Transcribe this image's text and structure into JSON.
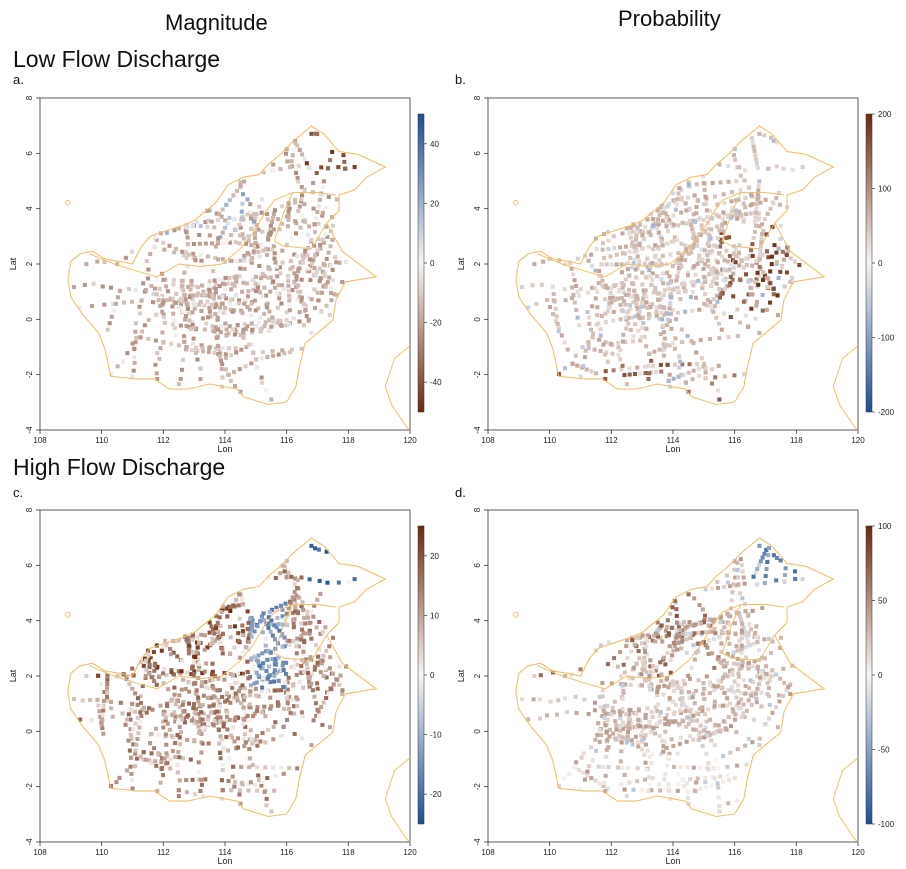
{
  "headers": {
    "left": "Magnitude",
    "right": "Probability"
  },
  "rows": [
    {
      "title": "Low Flow Discharge"
    },
    {
      "title": "High Flow Discharge"
    }
  ],
  "panels": [
    {
      "letter": "a.",
      "xlabel": "Lon",
      "ylabel": "Lat",
      "xticks": [
        "108",
        "110",
        "112",
        "114",
        "116",
        "118",
        "120"
      ],
      "yticks": [
        "8",
        "6",
        "4",
        "2",
        "0",
        "-2",
        "-4"
      ],
      "scale": {
        "min": -50,
        "max": 50,
        "ticks": [
          "40",
          "20",
          "0",
          "-20",
          "-40"
        ]
      },
      "colors": {
        "neg": "#6b2a10",
        "mid": "#f7f4f2",
        "pos": "#1f4e93"
      }
    },
    {
      "letter": "b.",
      "xlabel": "Lon",
      "ylabel": "Lat",
      "xticks": [
        "108",
        "110",
        "112",
        "114",
        "116",
        "118",
        "120"
      ],
      "yticks": [
        "8",
        "6",
        "4",
        "2",
        "0",
        "-2",
        "-4"
      ],
      "scale": {
        "min": -200,
        "max": 200,
        "ticks": [
          "200",
          "100",
          "0",
          "-100",
          "-200"
        ]
      },
      "colors": {
        "neg": "#1f4e93",
        "mid": "#f7f4f2",
        "pos": "#6b2a10"
      }
    },
    {
      "letter": "c.",
      "xlabel": "Lon",
      "ylabel": "Lat",
      "xticks": [
        "108",
        "110",
        "112",
        "114",
        "116",
        "118",
        "120"
      ],
      "yticks": [
        "8",
        "6",
        "4",
        "2",
        "0",
        "-2",
        "-4"
      ],
      "scale": {
        "min": -25,
        "max": 25,
        "ticks": [
          "20",
          "10",
          "0",
          "-10",
          "-20"
        ]
      },
      "colors": {
        "neg": "#1f4e93",
        "mid": "#f7f4f2",
        "pos": "#6b2a10"
      }
    },
    {
      "letter": "d.",
      "xlabel": "Lon",
      "ylabel": "Lat",
      "xticks": [
        "108",
        "110",
        "112",
        "114",
        "116",
        "118",
        "120"
      ],
      "yticks": [
        "8",
        "6",
        "4",
        "2",
        "0",
        "-2",
        "-4"
      ],
      "scale": {
        "min": -100,
        "max": 100,
        "ticks": [
          "100",
          "50",
          "0",
          "-50",
          "-100"
        ]
      },
      "colors": {
        "neg": "#1f4e93",
        "mid": "#f7f4f2",
        "pos": "#6b2a10"
      }
    }
  ],
  "coast_color": "#f0c068"
}
